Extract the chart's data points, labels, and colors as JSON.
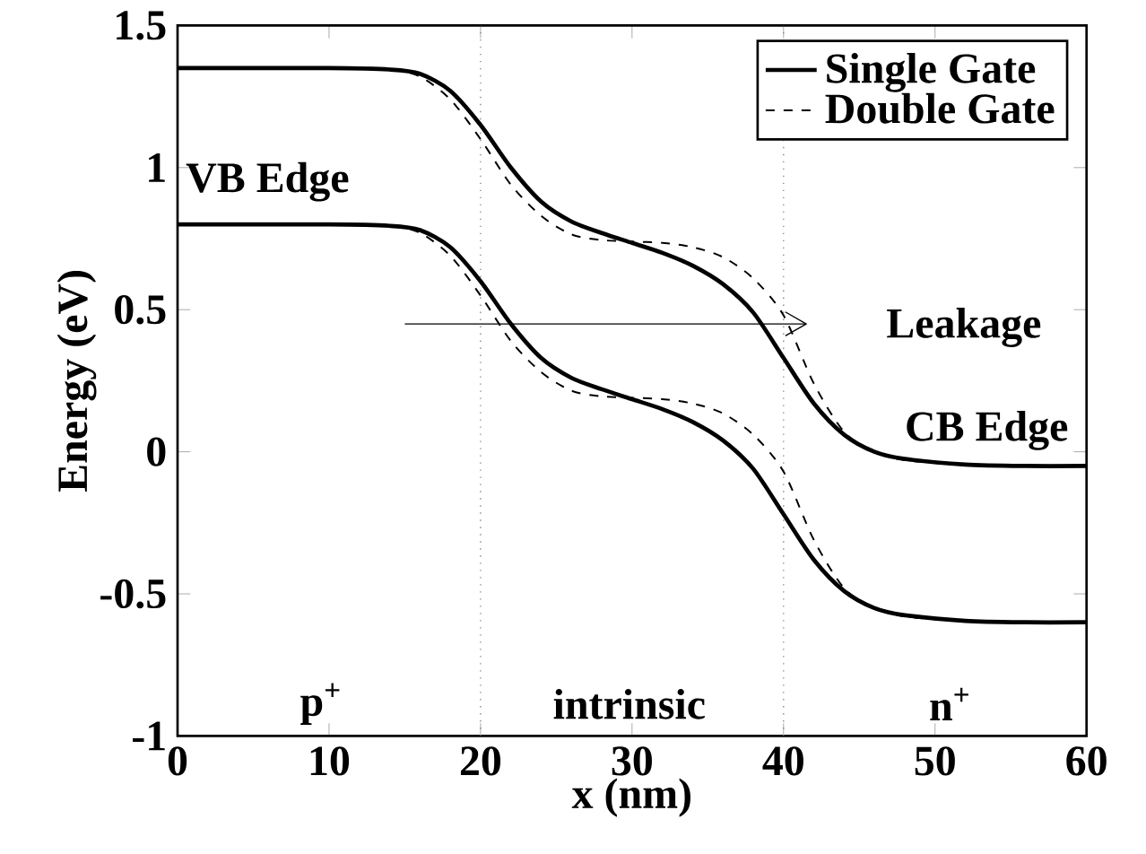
{
  "chart_data": {
    "type": "line",
    "xlabel": "x (nm)",
    "ylabel": "Energy (eV)",
    "xlim": [
      0,
      60
    ],
    "ylim": [
      -1,
      1.5
    ],
    "xticks": [
      0,
      10,
      20,
      30,
      40,
      50,
      60
    ],
    "yticks": [
      -1,
      -0.5,
      0,
      0.5,
      1,
      1.5
    ],
    "legend": "top right",
    "marker": "none",
    "series": [
      {
        "name": "Single Gate",
        "color": "#000000",
        "line_style": "solid",
        "x": [
          0,
          10,
          14,
          16,
          18,
          20,
          22,
          24,
          26,
          28,
          30,
          32,
          34,
          36,
          38,
          40,
          42,
          44,
          46,
          48,
          52,
          56,
          60
        ],
        "values": [
          1.35,
          1.35,
          1.345,
          1.33,
          1.27,
          1.15,
          1.0,
          0.88,
          0.81,
          0.77,
          0.735,
          0.7,
          0.655,
          0.59,
          0.49,
          0.33,
          0.17,
          0.06,
          0.0,
          -0.025,
          -0.045,
          -0.05,
          -0.05
        ]
      },
      {
        "name": "Double Gate",
        "color": "#000000",
        "line_style": "dashed",
        "x": [
          0,
          10,
          14,
          16,
          18,
          20,
          22,
          24,
          26,
          28,
          30,
          32,
          34,
          36,
          38,
          40,
          42,
          44,
          46,
          48,
          52,
          56,
          60
        ],
        "values": [
          1.35,
          1.35,
          1.345,
          1.32,
          1.24,
          1.1,
          0.94,
          0.83,
          0.765,
          0.745,
          0.74,
          0.735,
          0.72,
          0.685,
          0.61,
          0.48,
          0.24,
          0.07,
          0.0,
          -0.03,
          -0.045,
          -0.05,
          -0.05
        ]
      },
      {
        "color": "#000000",
        "line_style": "solid",
        "x": [
          0,
          10,
          14,
          16,
          18,
          20,
          22,
          24,
          26,
          28,
          30,
          32,
          34,
          36,
          38,
          40,
          42,
          44,
          46,
          48,
          52,
          56,
          60
        ],
        "values": [
          0.8,
          0.8,
          0.795,
          0.78,
          0.72,
          0.6,
          0.45,
          0.33,
          0.26,
          0.22,
          0.185,
          0.15,
          0.105,
          0.04,
          -0.06,
          -0.22,
          -0.38,
          -0.49,
          -0.55,
          -0.575,
          -0.595,
          -0.6,
          -0.6
        ]
      },
      {
        "color": "#000000",
        "line_style": "dashed",
        "x": [
          0,
          10,
          14,
          16,
          18,
          20,
          22,
          24,
          26,
          28,
          30,
          32,
          34,
          36,
          38,
          40,
          42,
          44,
          46,
          48,
          52,
          56,
          60
        ],
        "values": [
          0.8,
          0.8,
          0.795,
          0.77,
          0.69,
          0.55,
          0.39,
          0.28,
          0.215,
          0.195,
          0.19,
          0.185,
          0.17,
          0.135,
          0.06,
          -0.07,
          -0.31,
          -0.48,
          -0.55,
          -0.58,
          -0.595,
          -0.6,
          -0.6
        ]
      },
      {
        "type": "line",
        "color": "#000000",
        "line_style": "solid",
        "x": [
          15,
          41.5
        ],
        "values": [
          0.45,
          0.45
        ]
      }
    ],
    "ref_lines": [
      {
        "axis": "x",
        "value": 20,
        "color": "#808080",
        "line_style": "dotted"
      },
      {
        "axis": "x",
        "value": 40,
        "color": "#808080",
        "line_style": "dotted"
      }
    ],
    "annotations": [
      "VB Edge",
      "CB Edge",
      "Leakage",
      "p$^{+}$",
      "intrinsic",
      "n$^{+}$"
    ]
  }
}
